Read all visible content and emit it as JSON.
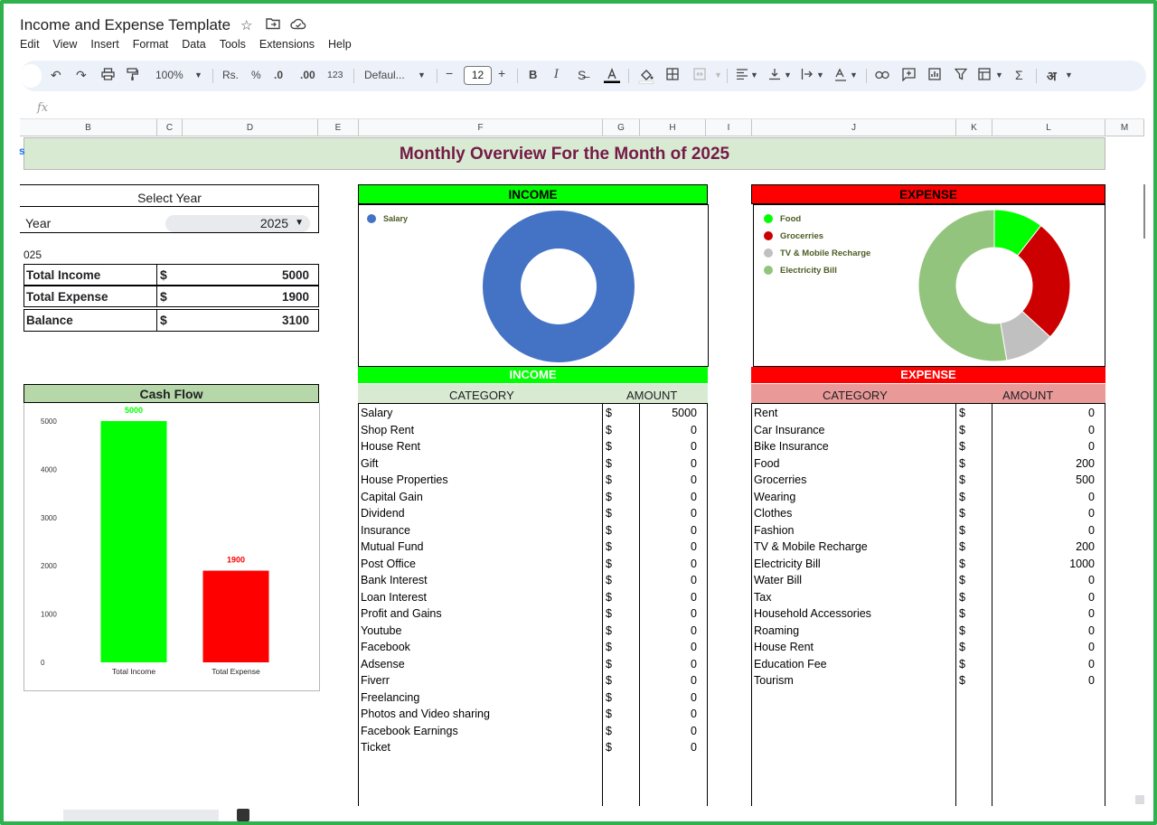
{
  "app": {
    "doc_title": "Income and Expense Template",
    "menus": [
      "Edit",
      "View",
      "Insert",
      "Format",
      "Data",
      "Tools",
      "Extensions",
      "Help"
    ]
  },
  "toolbar": {
    "zoom": "100%",
    "currency": "Rs.",
    "percent": "%",
    "dec_decrease": ".0",
    "dec_increase": ".00",
    "number_format": "123",
    "font": "Defaul...",
    "font_size": "12",
    "bold": "B",
    "italic": "I",
    "sigma": "Σ",
    "input_tool": "अ"
  },
  "formula_bar": {
    "fx": "fx"
  },
  "columns": [
    "B",
    "C",
    "D",
    "E",
    "F",
    "G",
    "H",
    "I",
    "J",
    "K",
    "L",
    "M"
  ],
  "banner": {
    "title": "Monthly Overview For the Month of 2025"
  },
  "summary": {
    "select_year_label": "Select Year",
    "year_label": "Year",
    "year_value": "2025",
    "year_note": "025",
    "currency": "$",
    "rows": [
      {
        "label": "Total Income",
        "value": "5000"
      },
      {
        "label": "Total Expense",
        "value": "1900"
      },
      {
        "label": "Balance",
        "value": "3100"
      }
    ]
  },
  "cash_flow": {
    "title": "Cash Flow"
  },
  "income_panel": {
    "chart_title": "INCOME",
    "table_title": "INCOME",
    "col_category": "CATEGORY",
    "col_amount": "AMOUNT",
    "rows": [
      {
        "category": "Salary",
        "amount": "5000"
      },
      {
        "category": "Shop Rent",
        "amount": "0"
      },
      {
        "category": "House Rent",
        "amount": "0"
      },
      {
        "category": "Gift",
        "amount": "0"
      },
      {
        "category": "House Properties",
        "amount": "0"
      },
      {
        "category": "Capital Gain",
        "amount": "0"
      },
      {
        "category": "Dividend",
        "amount": "0"
      },
      {
        "category": "Insurance",
        "amount": "0"
      },
      {
        "category": "Mutual Fund",
        "amount": "0"
      },
      {
        "category": "Post Office",
        "amount": "0"
      },
      {
        "category": "Bank Interest",
        "amount": "0"
      },
      {
        "category": "Loan Interest",
        "amount": "0"
      },
      {
        "category": "Profit and Gains",
        "amount": "0"
      },
      {
        "category": "Youtube",
        "amount": "0"
      },
      {
        "category": "Facebook",
        "amount": "0"
      },
      {
        "category": "Adsense",
        "amount": "0"
      },
      {
        "category": "Fiverr",
        "amount": "0"
      },
      {
        "category": "Freelancing",
        "amount": "0"
      },
      {
        "category": "Photos and Video sharing",
        "amount": "0"
      },
      {
        "category": "Facebook Earnings",
        "amount": "0"
      },
      {
        "category": "Ticket",
        "amount": "0"
      }
    ],
    "currency": "$"
  },
  "expense_panel": {
    "chart_title": "EXPENSE",
    "table_title": "EXPENSE",
    "col_category": "CATEGORY",
    "col_amount": "AMOUNT",
    "rows": [
      {
        "category": "Rent",
        "amount": "0"
      },
      {
        "category": "Car Insurance",
        "amount": "0"
      },
      {
        "category": "Bike Insurance",
        "amount": "0"
      },
      {
        "category": "Food",
        "amount": "200"
      },
      {
        "category": "Grocerries",
        "amount": "500"
      },
      {
        "category": "Wearing",
        "amount": "0"
      },
      {
        "category": "Clothes",
        "amount": "0"
      },
      {
        "category": "Fashion",
        "amount": "0"
      },
      {
        "category": "TV & Mobile Recharge",
        "amount": "200"
      },
      {
        "category": "Electricity Bill",
        "amount": "1000"
      },
      {
        "category": "Water Bill",
        "amount": "0"
      },
      {
        "category": "Tax",
        "amount": "0"
      },
      {
        "category": "Household Accessories",
        "amount": "0"
      },
      {
        "category": "Roaming",
        "amount": "0"
      },
      {
        "category": "House Rent",
        "amount": "0"
      },
      {
        "category": "Education Fee",
        "amount": "0"
      },
      {
        "category": "Tourism",
        "amount": "0"
      }
    ],
    "currency": "$"
  },
  "colors": {
    "green": "#00ff00",
    "red": "#ff0000",
    "income_blue": "#4472c4",
    "food": "#00ff00",
    "groceries": "#cc0000",
    "tv": "#c0c0c0",
    "electricity": "#93c47d"
  },
  "chart_data": [
    {
      "type": "bar",
      "title": "",
      "categories": [
        "Total Income",
        "Total Expense"
      ],
      "values": [
        5000,
        1900
      ],
      "data_labels": [
        "5000",
        "1900"
      ],
      "y_ticks": [
        "0",
        "1000",
        "2000",
        "3000",
        "4000",
        "5000"
      ],
      "ylim": [
        0,
        5000
      ],
      "bar_colors": [
        "#00ff00",
        "#ff0000"
      ],
      "grid": false
    },
    {
      "type": "pie",
      "title": "",
      "donut": true,
      "labels": [
        "Salary"
      ],
      "values": [
        5000
      ],
      "colors": [
        "#4472c4"
      ],
      "legend_position": "top-left"
    },
    {
      "type": "pie",
      "title": "",
      "donut": true,
      "labels": [
        "Food",
        "Grocerries",
        "TV & Mobile Recharge",
        "Electricity Bill"
      ],
      "values": [
        200,
        500,
        200,
        1000
      ],
      "colors": [
        "#00ff00",
        "#cc0000",
        "#c0c0c0",
        "#93c47d"
      ],
      "legend_position": "top-left"
    }
  ]
}
